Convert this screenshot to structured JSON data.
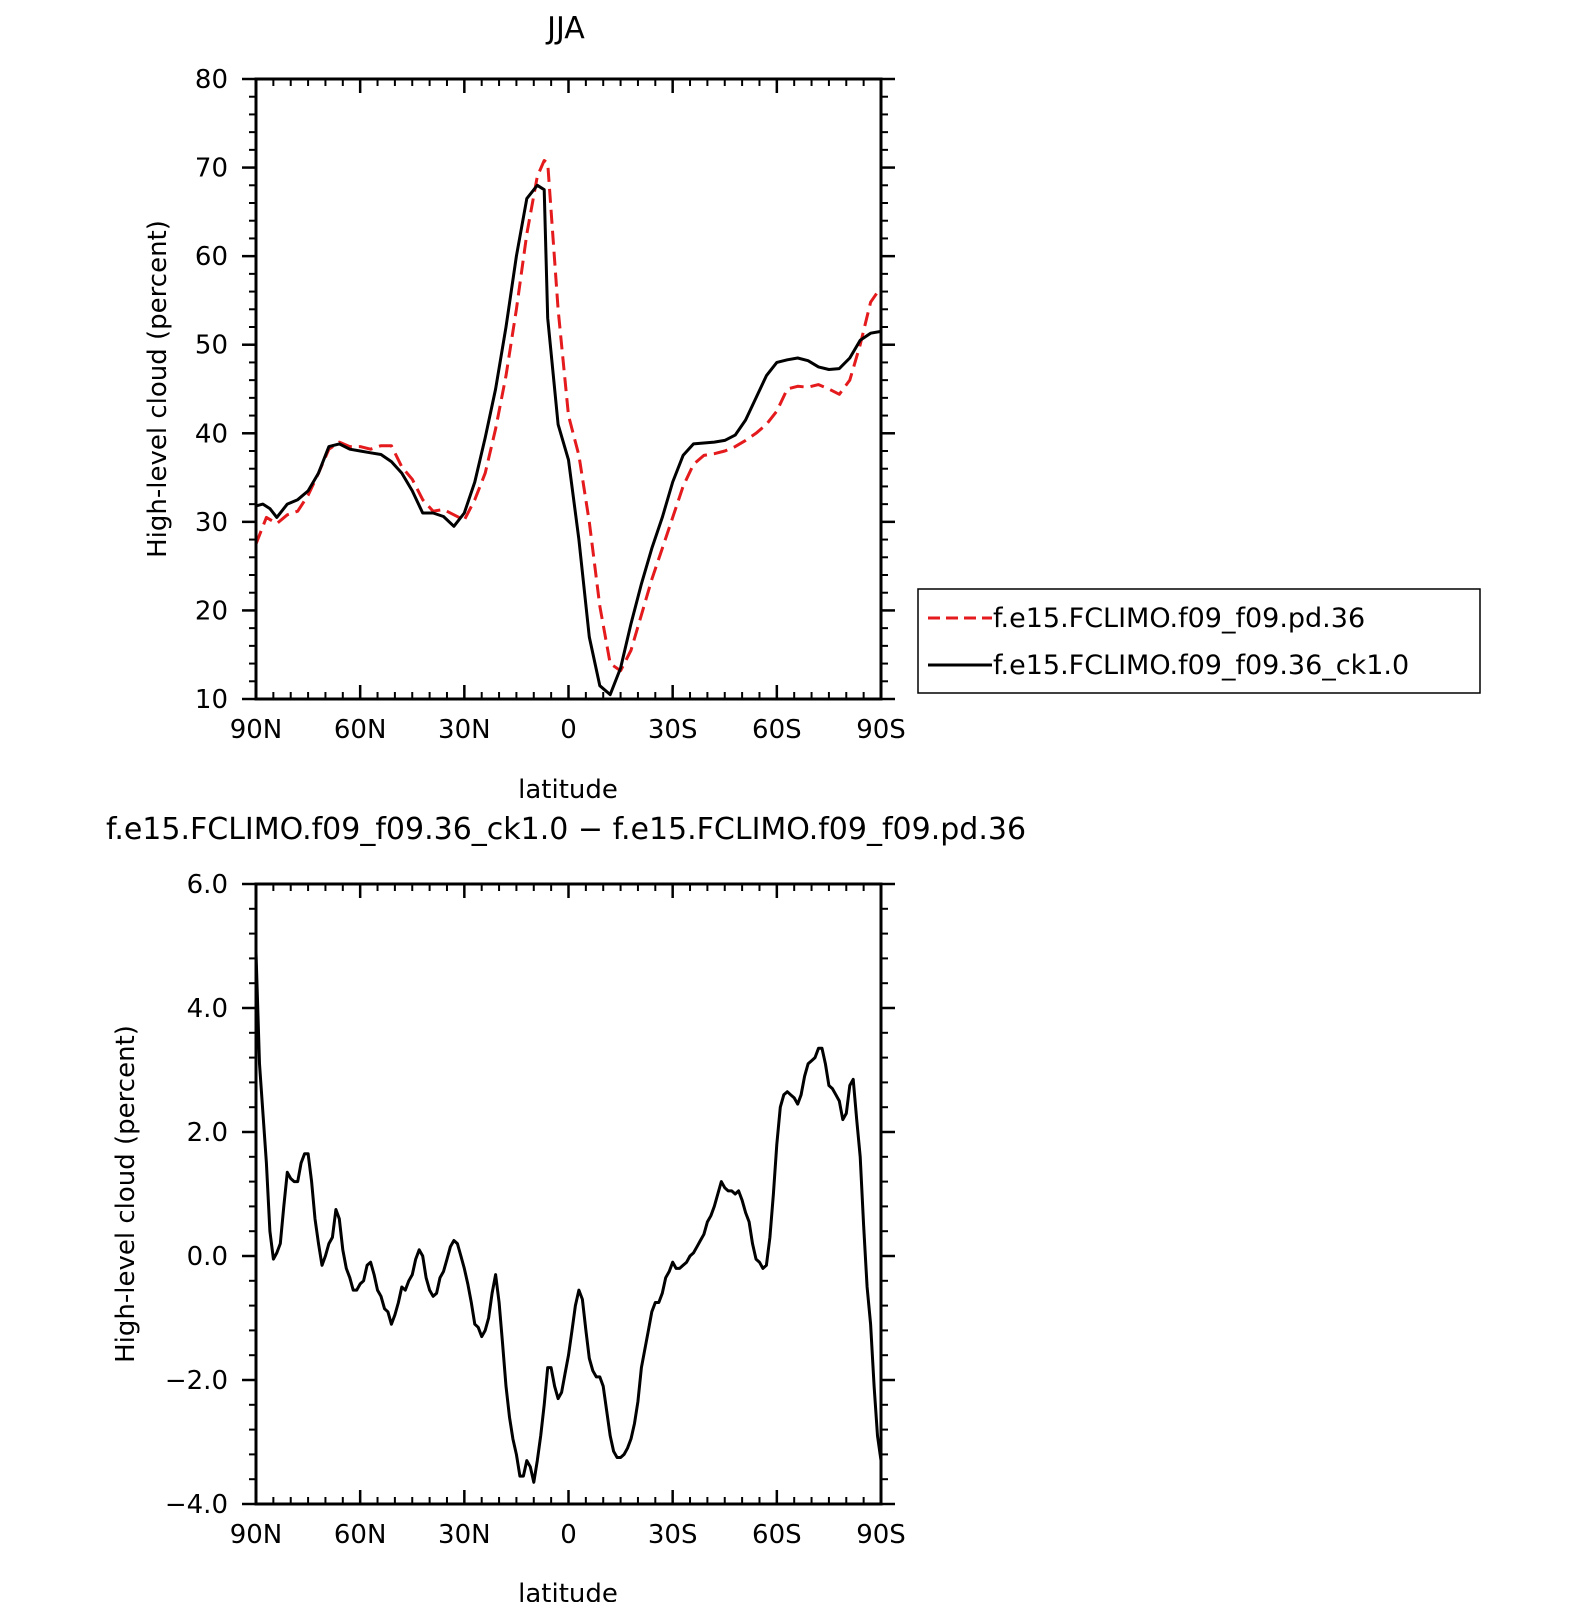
{
  "chart_data": [
    {
      "type": "line",
      "title": "JJA",
      "xlabel": "latitude",
      "ylabel": "High-level cloud (percent)",
      "x_reversed": true,
      "xlim": [
        90,
        -90
      ],
      "ylim": [
        10,
        80
      ],
      "x_ticks": [
        {
          "value": 90,
          "label": "90N"
        },
        {
          "value": 60,
          "label": "60N"
        },
        {
          "value": 30,
          "label": "30N"
        },
        {
          "value": 0,
          "label": "0"
        },
        {
          "value": -30,
          "label": "30S"
        },
        {
          "value": -60,
          "label": "60S"
        },
        {
          "value": -90,
          "label": "90S"
        }
      ],
      "y_ticks": [
        {
          "value": 10,
          "label": "10"
        },
        {
          "value": 20,
          "label": "20"
        },
        {
          "value": 30,
          "label": "30"
        },
        {
          "value": 40,
          "label": "40"
        },
        {
          "value": 50,
          "label": "50"
        },
        {
          "value": 60,
          "label": "60"
        },
        {
          "value": 70,
          "label": "70"
        },
        {
          "value": 80,
          "label": "80"
        }
      ],
      "legend_position": "outside-right",
      "series": [
        {
          "name": "f.e15.FCLIMO.f09_f09.pd.36",
          "color": "#e41a1c",
          "dash": "dashed",
          "x": [
            90,
            87,
            84,
            81,
            78,
            75,
            72,
            69,
            66,
            63,
            60,
            57,
            54,
            51,
            48,
            45,
            42,
            39,
            36,
            33,
            30,
            27,
            24,
            21,
            18,
            15,
            12,
            9,
            7,
            6,
            3,
            0,
            -3,
            -6,
            -9,
            -12,
            -15,
            -18,
            -21,
            -24,
            -27,
            -30,
            -33,
            -36,
            -39,
            -42,
            -45,
            -48,
            -51,
            -54,
            -57,
            -60,
            -63,
            -66,
            -69,
            -72,
            -75,
            -78,
            -81,
            -84,
            -87,
            -90
          ],
          "values": [
            27.5,
            30.5,
            29.8,
            30.8,
            31.2,
            33.0,
            35.5,
            38.2,
            39.0,
            38.5,
            38.5,
            38.2,
            38.6,
            38.6,
            36.2,
            34.8,
            32.5,
            31.2,
            31.4,
            30.8,
            30.2,
            32.5,
            35.5,
            40.5,
            46.5,
            54.0,
            62.5,
            69.0,
            70.8,
            70.5,
            54.0,
            42.0,
            37.5,
            30.0,
            20.5,
            14.0,
            13.2,
            15.5,
            19.5,
            23.5,
            27.0,
            30.5,
            34.0,
            36.5,
            37.5,
            37.7,
            38.0,
            38.5,
            39.2,
            40.0,
            41.0,
            42.5,
            45.0,
            45.3,
            45.2,
            45.5,
            45.0,
            44.4,
            46.0,
            50.0,
            54.8,
            56.5
          ]
        },
        {
          "name": "f.e15.FCLIMO.f09_f09.36_ck1.0",
          "color": "#000000",
          "dash": "solid",
          "x": [
            90,
            88,
            86,
            84,
            81,
            78,
            75,
            72,
            69,
            66,
            63,
            60,
            57,
            54,
            51,
            48,
            45,
            42,
            39,
            36,
            33,
            30,
            27,
            24,
            21,
            18,
            15,
            12,
            9,
            7,
            6,
            3,
            0,
            -3,
            -6,
            -9,
            -12,
            -15,
            -18,
            -21,
            -24,
            -27,
            -30,
            -33,
            -36,
            -39,
            -42,
            -45,
            -48,
            -51,
            -54,
            -57,
            -60,
            -63,
            -66,
            -69,
            -72,
            -75,
            -78,
            -81,
            -84,
            -87,
            -90
          ],
          "values": [
            31.8,
            32.0,
            31.5,
            30.5,
            32.0,
            32.5,
            33.5,
            35.5,
            38.5,
            38.8,
            38.2,
            38.0,
            37.8,
            37.6,
            36.8,
            35.5,
            33.5,
            31.0,
            31.0,
            30.6,
            29.5,
            31.0,
            34.5,
            39.5,
            45.0,
            52.0,
            60.0,
            66.5,
            68.0,
            67.5,
            53.0,
            41.0,
            37.0,
            28.0,
            17.0,
            11.5,
            10.5,
            13.5,
            18.5,
            23.0,
            27.0,
            30.5,
            34.5,
            37.5,
            38.8,
            38.9,
            39.0,
            39.2,
            39.8,
            41.5,
            44.0,
            46.5,
            48.0,
            48.3,
            48.5,
            48.2,
            47.5,
            47.2,
            47.3,
            48.5,
            50.5,
            51.3,
            51.5
          ]
        }
      ]
    },
    {
      "type": "line",
      "title": "f.e15.FCLIMO.f09_f09.36_ck1.0 − f.e15.FCLIMO.f09_f09.pd.36",
      "xlabel": "latitude",
      "ylabel": "High-level cloud (percent)",
      "x_reversed": true,
      "xlim": [
        90,
        -90
      ],
      "ylim": [
        -4.0,
        6.0
      ],
      "x_ticks": [
        {
          "value": 90,
          "label": "90N"
        },
        {
          "value": 60,
          "label": "60N"
        },
        {
          "value": 30,
          "label": "30N"
        },
        {
          "value": 0,
          "label": "0"
        },
        {
          "value": -30,
          "label": "30S"
        },
        {
          "value": -60,
          "label": "60S"
        },
        {
          "value": -90,
          "label": "90S"
        }
      ],
      "y_ticks": [
        {
          "value": -4.0,
          "label": "−4.0"
        },
        {
          "value": -2.0,
          "label": "−2.0"
        },
        {
          "value": 0.0,
          "label": "0.0"
        },
        {
          "value": 2.0,
          "label": "2.0"
        },
        {
          "value": 4.0,
          "label": "4.0"
        },
        {
          "value": 6.0,
          "label": "6.0"
        }
      ],
      "series": [
        {
          "color": "#000000",
          "dash": "solid",
          "x": [
            90,
            89,
            87,
            86,
            85,
            84,
            83,
            82,
            81,
            80,
            79,
            78,
            77,
            76,
            75,
            74,
            73,
            72,
            71,
            70,
            69,
            68,
            67,
            66,
            65,
            64,
            63,
            62,
            61,
            60,
            59,
            58,
            57,
            56,
            55,
            54,
            53,
            52,
            51,
            50,
            49,
            48,
            47,
            46,
            45,
            44,
            43,
            42,
            41,
            40,
            39,
            38,
            37,
            36,
            35,
            34,
            33,
            32,
            31,
            30,
            29,
            28,
            27,
            26,
            25,
            24,
            23,
            22,
            21,
            20,
            19,
            18,
            17,
            16,
            15,
            14,
            13,
            12,
            11,
            10,
            9,
            8,
            7,
            6,
            5,
            4,
            3,
            2,
            1,
            0,
            -1,
            -2,
            -3,
            -4,
            -5,
            -6,
            -7,
            -8,
            -9,
            -10,
            -11,
            -12,
            -13,
            -14,
            -15,
            -16,
            -17,
            -18,
            -19,
            -20,
            -21,
            -22,
            -23,
            -24,
            -25,
            -26,
            -27,
            -28,
            -29,
            -30,
            -31,
            -32,
            -33,
            -34,
            -35,
            -36,
            -37,
            -38,
            -39,
            -40,
            -41,
            -42,
            -43,
            -44,
            -45,
            -46,
            -47,
            -48,
            -49,
            -50,
            -51,
            -52,
            -53,
            -54,
            -55,
            -56,
            -57,
            -58,
            -59,
            -60,
            -61,
            -62,
            -63,
            -64,
            -65,
            -66,
            -67,
            -68,
            -69,
            -70,
            -71,
            -72,
            -73,
            -74,
            -75,
            -76,
            -77,
            -78,
            -79,
            -80,
            -81,
            -82,
            -83,
            -84,
            -85,
            -86,
            -87,
            -88,
            -89,
            -90
          ],
          "values": [
            4.9,
            3.1,
            1.5,
            0.4,
            -0.05,
            0.05,
            0.2,
            0.8,
            1.35,
            1.25,
            1.2,
            1.2,
            1.5,
            1.65,
            1.65,
            1.2,
            0.6,
            0.2,
            -0.15,
            0.0,
            0.2,
            0.3,
            0.75,
            0.6,
            0.1,
            -0.2,
            -0.35,
            -0.55,
            -0.55,
            -0.45,
            -0.4,
            -0.15,
            -0.1,
            -0.3,
            -0.55,
            -0.65,
            -0.85,
            -0.9,
            -1.1,
            -0.95,
            -0.75,
            -0.5,
            -0.55,
            -0.4,
            -0.3,
            -0.05,
            0.1,
            0.0,
            -0.35,
            -0.55,
            -0.65,
            -0.6,
            -0.35,
            -0.25,
            -0.05,
            0.15,
            0.25,
            0.2,
            0.0,
            -0.2,
            -0.45,
            -0.75,
            -1.1,
            -1.15,
            -1.3,
            -1.2,
            -1.0,
            -0.6,
            -0.3,
            -0.75,
            -1.4,
            -2.1,
            -2.6,
            -2.95,
            -3.2,
            -3.55,
            -3.55,
            -3.3,
            -3.4,
            -3.65,
            -3.3,
            -2.9,
            -2.4,
            -1.8,
            -1.8,
            -2.1,
            -2.3,
            -2.2,
            -1.9,
            -1.6,
            -1.2,
            -0.8,
            -0.55,
            -0.7,
            -1.2,
            -1.65,
            -1.85,
            -1.95,
            -1.95,
            -2.1,
            -2.5,
            -2.9,
            -3.15,
            -3.25,
            -3.25,
            -3.2,
            -3.1,
            -2.95,
            -2.7,
            -2.35,
            -1.8,
            -1.5,
            -1.2,
            -0.9,
            -0.75,
            -0.75,
            -0.6,
            -0.35,
            -0.25,
            -0.1,
            -0.2,
            -0.2,
            -0.15,
            -0.1,
            0.0,
            0.05,
            0.15,
            0.25,
            0.35,
            0.55,
            0.65,
            0.8,
            1.0,
            1.2,
            1.1,
            1.05,
            1.05,
            1.0,
            1.05,
            0.9,
            0.7,
            0.55,
            0.2,
            -0.05,
            -0.1,
            -0.2,
            -0.15,
            0.3,
            1.0,
            1.8,
            2.4,
            2.6,
            2.65,
            2.6,
            2.55,
            2.45,
            2.6,
            2.9,
            3.1,
            3.15,
            3.2,
            3.35,
            3.35,
            3.1,
            2.75,
            2.7,
            2.6,
            2.5,
            2.2,
            2.3,
            2.75,
            2.85,
            2.2,
            1.6,
            0.5,
            -0.5,
            -1.1,
            -2.1,
            -2.9,
            -3.3
          ]
        }
      ]
    }
  ]
}
